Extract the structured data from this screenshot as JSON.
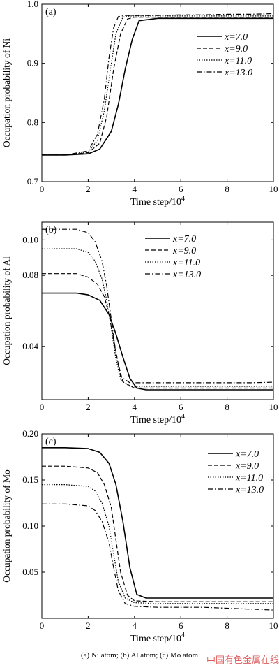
{
  "caption": "(a) Ni atom; (b) Al atom; (c) Mo atom",
  "watermark": "中国有色金属在线",
  "chart_data": [
    {
      "type": "line",
      "panel_label": "(a)",
      "xlabel": "Time step/10",
      "xlabel_sup": "4",
      "ylabel": "Occupation probability of Ni",
      "xlim": [
        0,
        10
      ],
      "ylim": [
        0.7,
        1.0
      ],
      "xticks": [
        "0",
        "2",
        "4",
        "6",
        "8",
        "10"
      ],
      "yticks": [
        "0.7",
        "0.8",
        "0.9",
        "1.0"
      ],
      "series": [
        {
          "name": "x=7.0",
          "style": "solid",
          "x": [
            0,
            1,
            2,
            2.5,
            3,
            3.3,
            3.6,
            3.9,
            4.2,
            5,
            6,
            7,
            8,
            9,
            10
          ],
          "y": [
            0.745,
            0.745,
            0.747,
            0.755,
            0.785,
            0.83,
            0.89,
            0.94,
            0.972,
            0.976,
            0.976,
            0.976,
            0.976,
            0.976,
            0.976
          ]
        },
        {
          "name": "x=9.0",
          "style": "dashed",
          "x": [
            0,
            1,
            2,
            2.5,
            2.8,
            3.1,
            3.4,
            3.7,
            4,
            5,
            6,
            7,
            8,
            9,
            10
          ],
          "y": [
            0.745,
            0.745,
            0.749,
            0.765,
            0.81,
            0.89,
            0.95,
            0.975,
            0.978,
            0.978,
            0.978,
            0.978,
            0.978,
            0.978,
            0.978
          ]
        },
        {
          "name": "x=11.0",
          "style": "dotted",
          "x": [
            0,
            1,
            2,
            2.4,
            2.7,
            3,
            3.2,
            3.5,
            3.8,
            5,
            6,
            7,
            8,
            9,
            10
          ],
          "y": [
            0.745,
            0.745,
            0.75,
            0.77,
            0.82,
            0.9,
            0.95,
            0.978,
            0.98,
            0.98,
            0.98,
            0.98,
            0.98,
            0.98,
            0.98
          ]
        },
        {
          "name": "x=13.0",
          "style": "dashdot",
          "x": [
            0,
            1,
            2,
            2.4,
            2.7,
            2.9,
            3.1,
            3.3,
            3.6,
            5,
            6,
            7,
            8,
            9,
            10
          ],
          "y": [
            0.745,
            0.745,
            0.752,
            0.78,
            0.84,
            0.91,
            0.96,
            0.979,
            0.981,
            0.981,
            0.982,
            0.982,
            0.983,
            0.983,
            0.984
          ]
        }
      ]
    },
    {
      "type": "line",
      "panel_label": "(b)",
      "xlabel": "Time step/10",
      "xlabel_sup": "4",
      "ylabel": "Occupation probability of Al",
      "xlim": [
        0,
        10
      ],
      "ylim": [
        0.01,
        0.11
      ],
      "xticks": [
        "0",
        "2",
        "4",
        "6",
        "8",
        "10"
      ],
      "yticks": [
        "0.04",
        "0.08",
        "0.10"
      ],
      "series": [
        {
          "name": "x=7.0",
          "style": "solid",
          "x": [
            0,
            1,
            1.5,
            2,
            2.5,
            2.9,
            3.2,
            3.5,
            3.8,
            4.1,
            4.5,
            5,
            6,
            7,
            8,
            9,
            10
          ],
          "y": [
            0.07,
            0.07,
            0.07,
            0.069,
            0.066,
            0.058,
            0.047,
            0.034,
            0.022,
            0.0165,
            0.0155,
            0.0155,
            0.0155,
            0.0155,
            0.0155,
            0.0155,
            0.0155
          ]
        },
        {
          "name": "x=9.0",
          "style": "dashed",
          "x": [
            0,
            1,
            1.5,
            2,
            2.4,
            2.7,
            2.9,
            3.1,
            3.3,
            3.5,
            4,
            5,
            6,
            7,
            8,
            9,
            10
          ],
          "y": [
            0.081,
            0.081,
            0.081,
            0.079,
            0.075,
            0.068,
            0.058,
            0.044,
            0.03,
            0.02,
            0.0165,
            0.0165,
            0.0165,
            0.0165,
            0.0165,
            0.0165,
            0.0165
          ]
        },
        {
          "name": "x=11.0",
          "style": "dotted",
          "x": [
            0,
            1,
            1.5,
            2,
            2.3,
            2.6,
            2.8,
            3,
            3.2,
            3.4,
            3.8,
            5,
            6,
            7,
            8,
            9,
            10
          ],
          "y": [
            0.095,
            0.095,
            0.095,
            0.093,
            0.088,
            0.078,
            0.066,
            0.05,
            0.033,
            0.021,
            0.0175,
            0.0175,
            0.0175,
            0.0175,
            0.0175,
            0.0175,
            0.0175
          ]
        },
        {
          "name": "x=13.0",
          "style": "dashdot",
          "x": [
            0,
            1,
            1.5,
            2,
            2.3,
            2.6,
            2.8,
            3,
            3.2,
            3.4,
            3.8,
            5,
            6,
            7,
            8,
            9,
            10
          ],
          "y": [
            0.106,
            0.106,
            0.106,
            0.104,
            0.099,
            0.088,
            0.074,
            0.055,
            0.036,
            0.023,
            0.0195,
            0.0195,
            0.0195,
            0.0195,
            0.0195,
            0.0195,
            0.0198
          ]
        }
      ]
    },
    {
      "type": "line",
      "panel_label": "(c)",
      "xlabel": "Time step/10",
      "xlabel_sup": "4",
      "ylabel": "Occupation probability of Mo",
      "xlim": [
        0,
        10
      ],
      "ylim": [
        0,
        0.2
      ],
      "xticks": [
        "0",
        "2",
        "4",
        "6",
        "8",
        "10"
      ],
      "yticks": [
        "0.05",
        "0.10",
        "0.15",
        "0.20"
      ],
      "series": [
        {
          "name": "x=7.0",
          "style": "solid",
          "x": [
            0,
            1,
            2,
            2.5,
            2.9,
            3.2,
            3.5,
            3.8,
            4.1,
            4.5,
            5,
            6,
            7,
            8,
            9,
            10
          ],
          "y": [
            0.185,
            0.185,
            0.184,
            0.18,
            0.168,
            0.145,
            0.105,
            0.055,
            0.026,
            0.022,
            0.022,
            0.022,
            0.022,
            0.022,
            0.022,
            0.022
          ]
        },
        {
          "name": "x=9.0",
          "style": "dashed",
          "x": [
            0,
            1,
            2,
            2.4,
            2.7,
            3,
            3.2,
            3.4,
            3.7,
            4,
            5,
            6,
            7,
            8,
            9,
            10
          ],
          "y": [
            0.165,
            0.165,
            0.163,
            0.158,
            0.145,
            0.12,
            0.085,
            0.05,
            0.025,
            0.019,
            0.018,
            0.018,
            0.018,
            0.018,
            0.018,
            0.018
          ]
        },
        {
          "name": "x=11.0",
          "style": "dotted",
          "x": [
            0,
            1,
            2,
            2.3,
            2.6,
            2.9,
            3.1,
            3.3,
            3.6,
            4,
            5,
            6,
            7,
            8,
            9,
            10
          ],
          "y": [
            0.145,
            0.145,
            0.143,
            0.138,
            0.125,
            0.1,
            0.07,
            0.04,
            0.022,
            0.017,
            0.016,
            0.016,
            0.016,
            0.016,
            0.016,
            0.016
          ]
        },
        {
          "name": "x=13.0",
          "style": "dashdot",
          "x": [
            0,
            1,
            2,
            2.3,
            2.6,
            2.9,
            3.1,
            3.3,
            3.6,
            4,
            5,
            6,
            7,
            8,
            9,
            10
          ],
          "y": [
            0.124,
            0.124,
            0.122,
            0.117,
            0.105,
            0.082,
            0.055,
            0.03,
            0.016,
            0.013,
            0.012,
            0.012,
            0.012,
            0.011,
            0.01,
            0.009
          ]
        }
      ]
    }
  ]
}
